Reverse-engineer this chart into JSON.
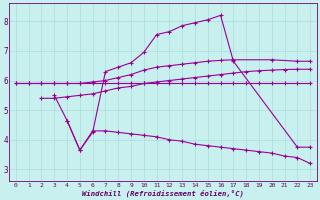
{
  "xlabel": "Windchill (Refroidissement éolien,°C)",
  "bg_color": "#c8f0ee",
  "grid_color": "#aadcdc",
  "line_color": "#990099",
  "xlim": [
    -0.5,
    23.5
  ],
  "ylim": [
    2.6,
    8.6
  ],
  "xticks": [
    0,
    1,
    2,
    3,
    4,
    5,
    6,
    7,
    8,
    9,
    10,
    11,
    12,
    13,
    14,
    15,
    16,
    17,
    18,
    19,
    20,
    21,
    22,
    23
  ],
  "yticks": [
    3,
    4,
    5,
    6,
    7,
    8
  ],
  "curve_top_x": [
    3,
    4,
    5,
    6,
    7,
    8,
    9,
    10,
    11,
    12,
    13,
    14,
    15,
    16,
    17,
    22,
    23
  ],
  "curve_top_y": [
    5.5,
    4.65,
    3.65,
    4.25,
    6.3,
    6.45,
    6.6,
    6.95,
    7.55,
    7.65,
    7.85,
    7.95,
    8.05,
    8.2,
    6.65,
    3.75,
    3.75
  ],
  "curve_upper_x": [
    0,
    1,
    2,
    3,
    4,
    5,
    6,
    7,
    8,
    9,
    10,
    11,
    12,
    13,
    14,
    15,
    16,
    17,
    20,
    22,
    23
  ],
  "curve_upper_y": [
    5.9,
    5.9,
    5.9,
    5.9,
    5.9,
    5.9,
    5.95,
    6.0,
    6.1,
    6.2,
    6.35,
    6.45,
    6.5,
    6.55,
    6.6,
    6.65,
    6.68,
    6.7,
    6.7,
    6.65,
    6.65
  ],
  "curve_mid_x": [
    2,
    3,
    4,
    5,
    6,
    7,
    8,
    9,
    10,
    11,
    12,
    13,
    14,
    15,
    16,
    17,
    18,
    19,
    20,
    21,
    22,
    23
  ],
  "curve_mid_y": [
    5.4,
    5.4,
    5.45,
    5.5,
    5.55,
    5.65,
    5.75,
    5.8,
    5.9,
    5.95,
    6.0,
    6.05,
    6.1,
    6.15,
    6.2,
    6.25,
    6.3,
    6.33,
    6.35,
    6.37,
    6.38,
    6.38
  ],
  "curve_flat_x": [
    0,
    1,
    2,
    3,
    4,
    5,
    6,
    7,
    8,
    9,
    10,
    11,
    12,
    13,
    14,
    15,
    16,
    17,
    18,
    19,
    20,
    21,
    22,
    23
  ],
  "curve_flat_y": [
    5.9,
    5.9,
    5.9,
    5.9,
    5.9,
    5.9,
    5.9,
    5.9,
    5.9,
    5.9,
    5.9,
    5.9,
    5.9,
    5.9,
    5.9,
    5.9,
    5.9,
    5.9,
    5.9,
    5.9,
    5.9,
    5.9,
    5.9,
    5.9
  ],
  "curve_bot_x": [
    4,
    5,
    6,
    7,
    8,
    9,
    10,
    11,
    12,
    13,
    14,
    15,
    16,
    17,
    18,
    19,
    20,
    21,
    22,
    23
  ],
  "curve_bot_y": [
    4.65,
    3.65,
    4.3,
    4.3,
    4.25,
    4.2,
    4.15,
    4.1,
    4.0,
    3.95,
    3.85,
    3.8,
    3.75,
    3.7,
    3.65,
    3.6,
    3.55,
    3.45,
    3.4,
    3.2
  ]
}
